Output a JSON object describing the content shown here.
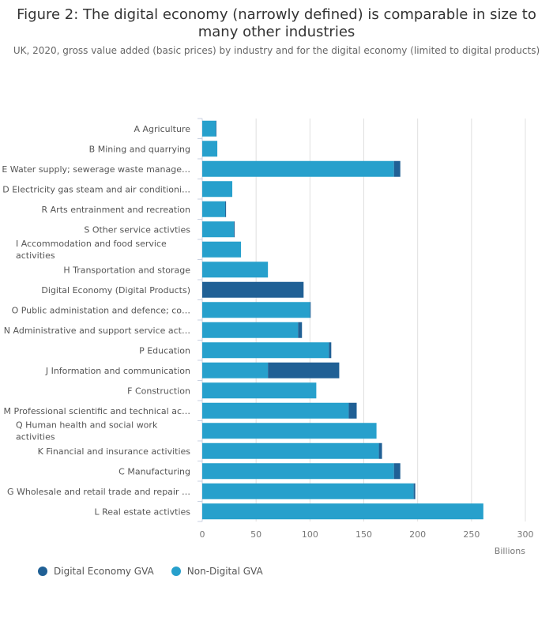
{
  "chart_data": {
    "type": "bar",
    "orientation": "horizontal",
    "stacked": true,
    "title": "Figure 2: The digital economy (narrowly defined) is comparable in size to many other industries",
    "subtitle": "UK, 2020, gross value added (basic prices) by industry and for the digital economy (limited to digital products)",
    "xlabel": "Billions",
    "xlim": [
      0,
      300
    ],
    "xticks": [
      0,
      50,
      100,
      150,
      200,
      250,
      300
    ],
    "grid": true,
    "legend_position": "bottom-left",
    "categories": [
      "A Agriculture",
      "B Mining and quarrying",
      "E Water supply; sewerage waste manage…",
      "D Electricity gas steam and air conditioni…",
      "R Arts entrainment and recreation",
      "S Other service activties",
      "I Accommodation and food service activities",
      "H Transportation and storage",
      "Digital Economy (Digital Products)",
      "O Public administation and defence; co…",
      "N Administrative and support service act…",
      "P Education",
      "J Information and communication",
      "F Construction",
      "M Professional scientific and technical ac…",
      "Q Human health and social work activities",
      "K Financial and insurance activities",
      "C Manufacturing",
      "G Wholesale and retail trade and repair …",
      "L Real estate activties"
    ],
    "series": [
      {
        "name": "Non-Digital GVA",
        "color": "#27a0cc",
        "values": [
          12.7,
          14.0,
          178.0,
          27.9,
          21.3,
          29.4,
          36.0,
          61.0,
          0,
          100.0,
          89.0,
          117.6,
          61.0,
          105.9,
          136.0,
          161.8,
          164.0,
          178.0,
          196.3,
          261.0
        ]
      },
      {
        "name": "Digital Economy GVA",
        "color": "#206095",
        "values": [
          0.5,
          0,
          5.9,
          0,
          0.8,
          0.7,
          0,
          0,
          94.1,
          0.7,
          3.6,
          2.2,
          66.2,
          0,
          7.4,
          0,
          2.9,
          5.9,
          1.5,
          0
        ]
      }
    ]
  },
  "legend": [
    {
      "label": "Digital Economy GVA",
      "color": "#206095"
    },
    {
      "label": "Non-Digital GVA",
      "color": "#27a0cc"
    }
  ]
}
